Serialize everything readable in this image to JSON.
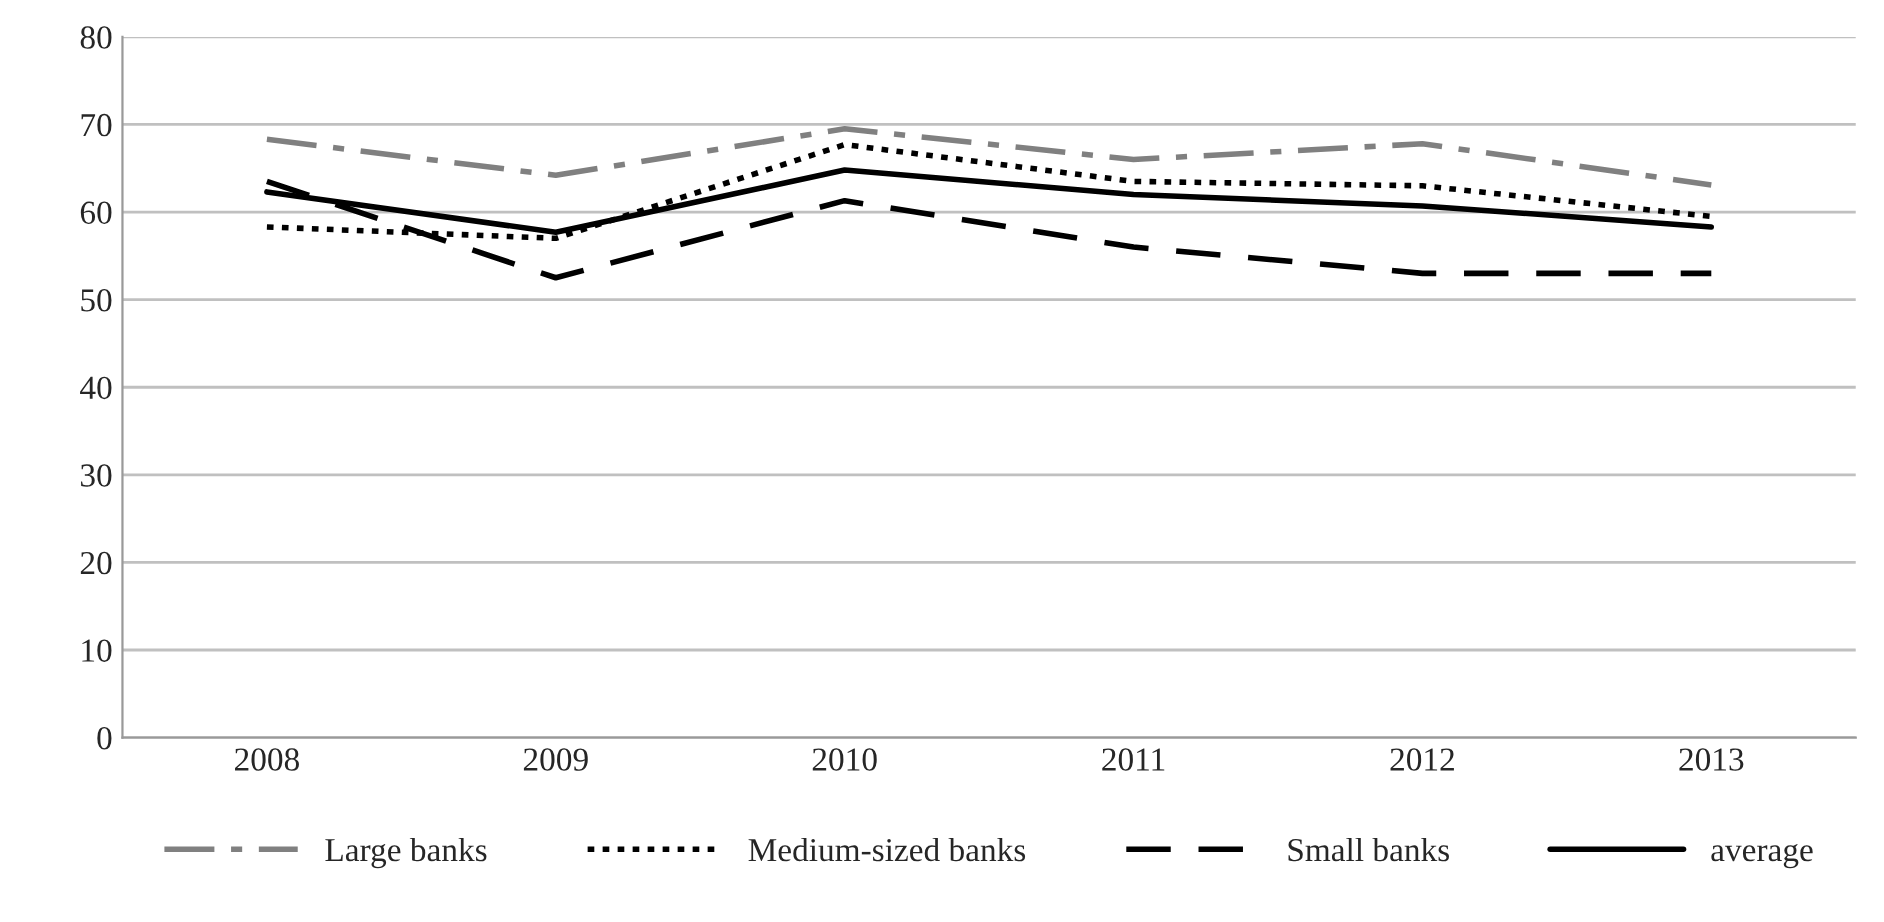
{
  "chart_data": {
    "type": "line",
    "categories": [
      "2008",
      "2009",
      "2010",
      "2011",
      "2012",
      "2013"
    ],
    "series": [
      {
        "name": "Large banks",
        "color": "#808080",
        "line_style": "dashdot",
        "values": [
          68.3,
          64.2,
          69.5,
          66.0,
          67.8,
          63.1
        ]
      },
      {
        "name": "Medium-sized banks",
        "color": "#000000",
        "line_style": "dotted",
        "values": [
          58.3,
          57.0,
          67.7,
          63.5,
          63.0,
          59.5
        ]
      },
      {
        "name": "Small banks",
        "color": "#000000",
        "line_style": "dashed",
        "values": [
          63.5,
          52.5,
          61.3,
          56.0,
          53.0,
          53.0
        ]
      },
      {
        "name": "average",
        "color": "#000000",
        "line_style": "solid",
        "values": [
          62.3,
          57.7,
          64.8,
          62.0,
          60.7,
          58.3
        ]
      }
    ],
    "ylim": [
      0,
      80
    ],
    "yticks": [
      0,
      10,
      20,
      30,
      40,
      50,
      60,
      70,
      80
    ],
    "grid": "y",
    "legend": "bottom",
    "marker": "none"
  }
}
